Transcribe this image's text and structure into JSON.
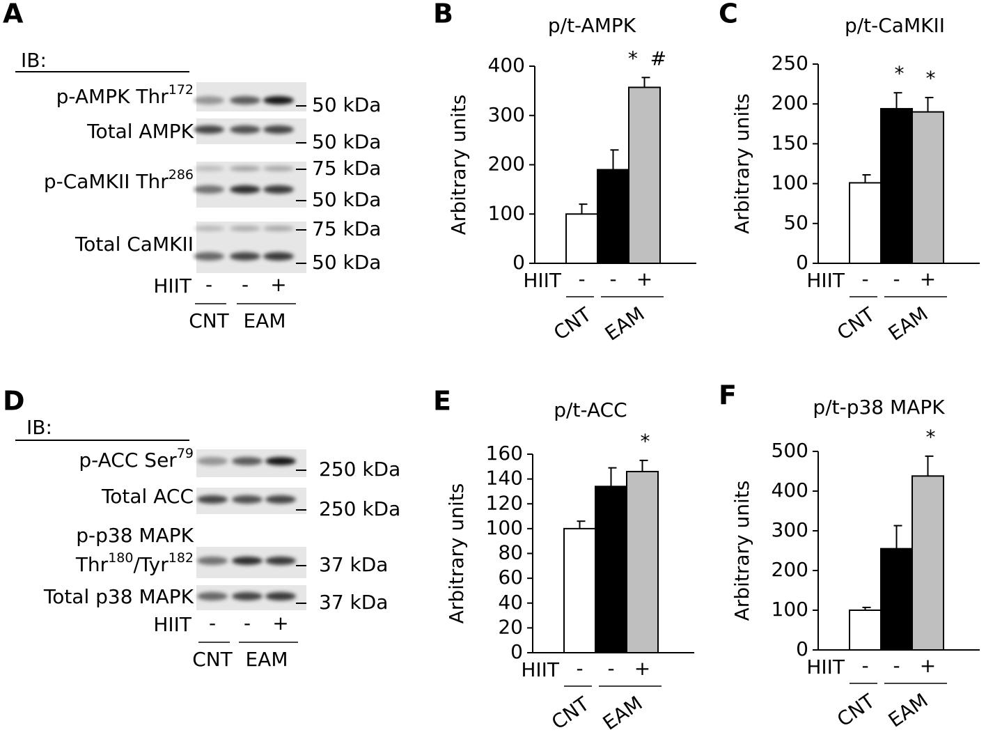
{
  "blots": [
    {
      "panel": "A",
      "ib": "IB:",
      "rows": [
        {
          "lines": [
            [
              "p-AMPK Thr",
              "172"
            ]
          ],
          "markers": [
            "50 kDa"
          ]
        },
        {
          "lines": [
            [
              "Total AMPK"
            ]
          ],
          "markers": [
            "50 kDa"
          ]
        },
        {
          "lines": [
            [
              "p-CaMKII Thr",
              "286"
            ]
          ],
          "markers": [
            "75 kDa",
            "50 kDa"
          ]
        },
        {
          "lines": [
            [
              "Total CaMKII"
            ]
          ],
          "markers": [
            "75 kDa",
            "50 kDa"
          ]
        }
      ],
      "treatment": "HIIT",
      "signs": [
        "-",
        "-",
        "+"
      ],
      "groups": [
        "CNT",
        "EAM"
      ]
    },
    {
      "panel": "D",
      "ib": "IB:",
      "rows": [
        {
          "lines": [
            [
              "p-ACC Ser",
              "79"
            ]
          ],
          "markers": [
            "250 kDa"
          ]
        },
        {
          "lines": [
            [
              "Total ACC"
            ]
          ],
          "markers": [
            "250 kDa"
          ]
        },
        {
          "lines": [
            [
              "p-p38 MAPK"
            ],
            [
              "Thr",
              "180",
              "/Tyr",
              "182"
            ]
          ],
          "markers": [
            "37 kDa"
          ]
        },
        {
          "lines": [
            [
              "Total p38 MAPK"
            ]
          ],
          "markers": [
            "37 kDa"
          ]
        }
      ],
      "treatment": "HIIT",
      "signs": [
        "-",
        "-",
        "+"
      ],
      "groups": [
        "CNT",
        "EAM"
      ]
    }
  ],
  "chart_data": [
    {
      "type": "bar",
      "panel": "B",
      "title": "p/t-AMPK",
      "ylabel": "Arbitrary units",
      "values": [
        100,
        190,
        357
      ],
      "errors": [
        20,
        40,
        20
      ],
      "colors": [
        "#ffffff",
        "#000000",
        "#bfbfbf"
      ],
      "significance": [
        null,
        null,
        "*  #"
      ],
      "ylim": [
        0,
        400
      ],
      "yticks": [
        0,
        100,
        200,
        300,
        400
      ],
      "treatment": "HIIT",
      "signs": [
        "-",
        "-",
        "+"
      ],
      "groups": [
        "CNT",
        "EAM"
      ]
    },
    {
      "type": "bar",
      "panel": "C",
      "title": "p/t-CaMKII",
      "ylabel": "Arbitrary units",
      "values": [
        101,
        194,
        190
      ],
      "errors": [
        10,
        20,
        18
      ],
      "colors": [
        "#ffffff",
        "#000000",
        "#bfbfbf"
      ],
      "significance": [
        null,
        "*",
        "*"
      ],
      "ylim": [
        0,
        250
      ],
      "yticks": [
        0,
        50,
        100,
        150,
        200,
        250
      ],
      "treatment": "HIIT",
      "signs": [
        "-",
        "-",
        "+"
      ],
      "groups": [
        "CNT",
        "EAM"
      ]
    },
    {
      "type": "bar",
      "panel": "E",
      "title": "p/t-ACC",
      "ylabel": "Arbitrary units",
      "values": [
        100,
        134,
        146
      ],
      "errors": [
        6,
        15,
        9
      ],
      "colors": [
        "#ffffff",
        "#000000",
        "#bfbfbf"
      ],
      "significance": [
        null,
        null,
        "*"
      ],
      "ylim": [
        0,
        160
      ],
      "yticks": [
        0,
        20,
        40,
        60,
        80,
        100,
        120,
        140,
        160
      ],
      "treatment": "HIIT",
      "signs": [
        "-",
        "-",
        "+"
      ],
      "groups": [
        "CNT",
        "EAM"
      ]
    },
    {
      "type": "bar",
      "panel": "F",
      "title": "p/t-p38 MAPK",
      "ylabel": "Arbitrary units",
      "values": [
        100,
        255,
        438
      ],
      "errors": [
        7,
        58,
        50
      ],
      "colors": [
        "#ffffff",
        "#000000",
        "#bfbfbf"
      ],
      "significance": [
        null,
        null,
        "*"
      ],
      "ylim": [
        0,
        500
      ],
      "yticks": [
        0,
        100,
        200,
        300,
        400,
        500
      ],
      "treatment": "HIIT",
      "signs": [
        "-",
        "-",
        "+"
      ],
      "groups": [
        "CNT",
        "EAM"
      ]
    }
  ]
}
